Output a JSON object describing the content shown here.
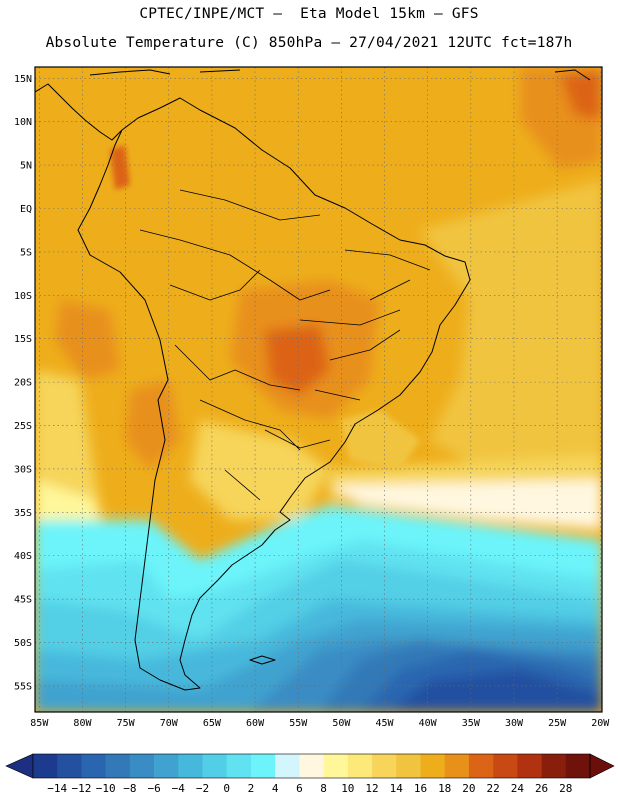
{
  "header": {
    "line1": "CPTEC/INPE/MCT –  Eta Model 15km – GFS",
    "line2": "Absolute Temperature (C) 850hPa – 27/04/2021 12UTC fct=187h"
  },
  "map": {
    "lat_labels": [
      "15N",
      "10N",
      "5N",
      "EQ",
      "5S",
      "10S",
      "15S",
      "20S",
      "25S",
      "30S",
      "35S",
      "40S",
      "45S",
      "50S",
      "55S"
    ],
    "lat_values": [
      15,
      10,
      5,
      0,
      -5,
      -10,
      -15,
      -20,
      -25,
      -30,
      -35,
      -40,
      -45,
      -50,
      -55
    ],
    "lon_labels": [
      "85W",
      "80W",
      "75W",
      "70W",
      "65W",
      "60W",
      "55W",
      "50W",
      "45W",
      "40W",
      "35W",
      "30W",
      "25W",
      "20W"
    ],
    "lon_values": [
      -85,
      -80,
      -75,
      -70,
      -65,
      -60,
      -55,
      -50,
      -45,
      -40,
      -35,
      -30,
      -25,
      -20
    ],
    "extent": {
      "lon_min": -85.5,
      "lon_max": -19.8,
      "lat_min": -58,
      "lat_max": 16.3
    }
  },
  "colorbar": {
    "labels": [
      "-14",
      "-12",
      "-10",
      "-8",
      "-6",
      "-4",
      "-2",
      "0",
      "2",
      "4",
      "6",
      "8",
      "10",
      "12",
      "14",
      "16",
      "18",
      "20",
      "22",
      "24",
      "26",
      "28"
    ],
    "colors": [
      "#1c3b8f",
      "#2450a0",
      "#2a66b0",
      "#3379b8",
      "#3a8cc4",
      "#40a2cf",
      "#46b8db",
      "#52cfe6",
      "#60e2f0",
      "#6cf4fa",
      "#d2f6fb",
      "#fff7e0",
      "#fff79a",
      "#fce97a",
      "#f6d55a",
      "#f1c43f",
      "#eeae1c",
      "#e8901a",
      "#dc6416",
      "#c84914",
      "#b03210",
      "#8a1e0d",
      "#70120c"
    ],
    "left_arrow_color": "#1c2f80",
    "right_arrow_color": "#6a0f0c"
  }
}
